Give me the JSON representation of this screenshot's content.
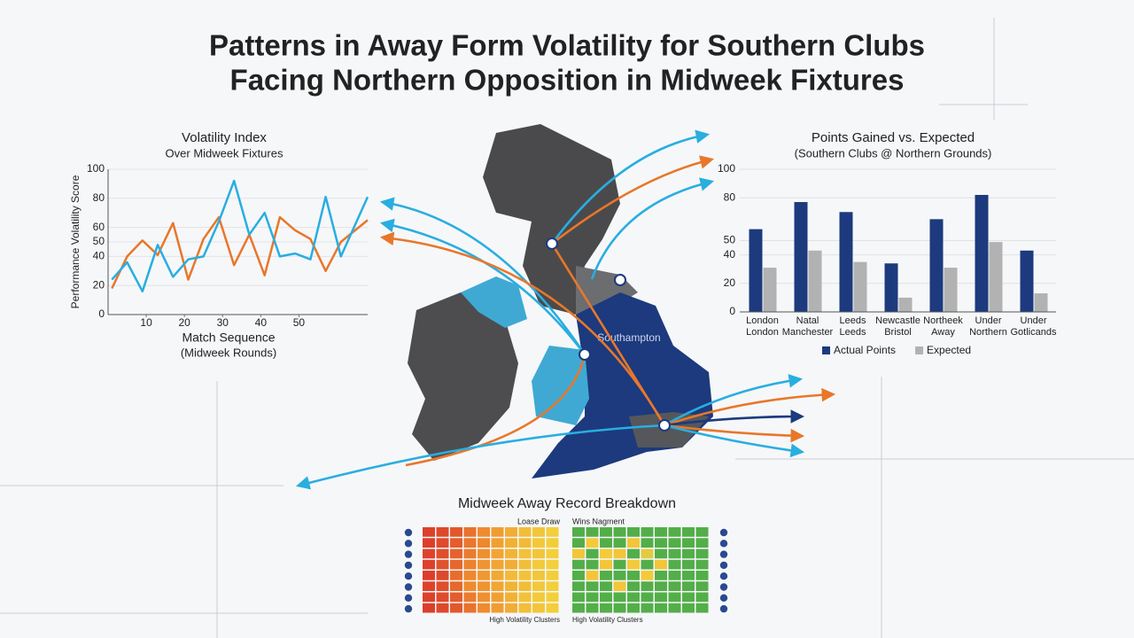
{
  "title": [
    "Patterns in Away Form Volatility for Southern Clubs",
    "Facing Northern Opposition in Midweek Fixtures"
  ],
  "map": {
    "label": "Southampton"
  },
  "chart_data": [
    {
      "type": "line",
      "title": "Volatility Index",
      "subtitle": "Over Midweek Fixtures",
      "y_label": "Performance Volatility Score",
      "x_label": "Match Sequence",
      "x_sublabel": "(Midweek Rounds)",
      "x": [
        1,
        5,
        9,
        13,
        17,
        21,
        25,
        29,
        33,
        37,
        41,
        45,
        49,
        53,
        57,
        61,
        68
      ],
      "series": [
        {
          "color": "#29aee0",
          "values": [
            24,
            36,
            16,
            48,
            26,
            38,
            40,
            64,
            92,
            55,
            70,
            40,
            42,
            38,
            81,
            40,
            81
          ]
        },
        {
          "color": "#e8772a",
          "values": [
            18,
            40,
            51,
            41,
            63,
            24,
            52,
            67,
            34,
            55,
            27,
            67,
            58,
            52,
            30,
            50,
            65
          ]
        }
      ],
      "xlim": [
        0,
        68
      ],
      "ylim": [
        0,
        100
      ],
      "xticks": [
        10,
        20,
        30,
        40,
        50
      ],
      "yticks": [
        0,
        20,
        40,
        50,
        60,
        80,
        100
      ],
      "grid": true
    },
    {
      "type": "bar",
      "title": "Points Gained vs. Expected",
      "subtitle": "(Southern Clubs @ Northern Grounds)",
      "categories": [
        [
          "London",
          "London"
        ],
        [
          "Natal",
          "Manchester"
        ],
        [
          "Leeds",
          "Leeds"
        ],
        [
          "Newcastle",
          "Bristol"
        ],
        [
          "Northeek",
          "Away"
        ],
        [
          "Under",
          "Northern"
        ],
        [
          "Under",
          "Gotlicands"
        ]
      ],
      "series": [
        {
          "name": "Actual Points",
          "color": "#1c3a7d",
          "values": [
            58,
            77,
            70,
            34,
            65,
            82,
            43
          ]
        },
        {
          "name": "Expected",
          "color": "#b2b2b2",
          "values": [
            31,
            43,
            35,
            10,
            31,
            49,
            13
          ]
        }
      ],
      "ylim": [
        0,
        100
      ],
      "yticks": [
        0,
        20,
        40,
        50,
        80,
        100
      ],
      "grid": true,
      "legend": "bottom"
    },
    {
      "type": "heatmap",
      "title": "Midweek Away Record Breakdown",
      "colors": [
        "#d9342b",
        "#ef8a2e",
        "#f3d03b",
        "#3da94b"
      ],
      "panels": [
        {
          "label": "Loase Draw",
          "footer": "High Volatility Clusters",
          "values": [
            [
              5,
              8,
              14,
              24,
              34,
              42,
              50,
              58,
              62,
              66
            ],
            [
              4,
              9,
              16,
              26,
              32,
              44,
              52,
              56,
              63,
              65
            ],
            [
              6,
              10,
              18,
              28,
              36,
              46,
              54,
              60,
              62,
              66
            ],
            [
              5,
              12,
              20,
              30,
              38,
              46,
              50,
              58,
              64,
              66
            ],
            [
              4,
              8,
              22,
              32,
              40,
              48,
              56,
              60,
              62,
              65
            ],
            [
              6,
              10,
              20,
              34,
              38,
              46,
              54,
              58,
              63,
              66
            ],
            [
              5,
              9,
              16,
              28,
              36,
              44,
              52,
              60,
              64,
              66
            ],
            [
              4,
              8,
              14,
              24,
              34,
              42,
              50,
              58,
              62,
              65
            ]
          ]
        },
        {
          "label": "Wins Nagment",
          "footer": "High Volatility Clusters",
          "values": [
            [
              96,
              96,
              96,
              96,
              96,
              96,
              96,
              96,
              96,
              96
            ],
            [
              96,
              64,
              96,
              96,
              62,
              96,
              96,
              96,
              96,
              96
            ],
            [
              62,
              96,
              64,
              62,
              96,
              70,
              96,
              96,
              96,
              96
            ],
            [
              96,
              96,
              62,
              96,
              64,
              96,
              62,
              96,
              96,
              96
            ],
            [
              96,
              62,
              96,
              96,
              96,
              64,
              96,
              96,
              96,
              96
            ],
            [
              96,
              96,
              96,
              62,
              96,
              96,
              96,
              96,
              96,
              96
            ],
            [
              96,
              96,
              96,
              96,
              96,
              96,
              96,
              96,
              96,
              96
            ],
            [
              96,
              96,
              96,
              96,
              96,
              96,
              96,
              96,
              96,
              96
            ]
          ]
        }
      ]
    }
  ]
}
